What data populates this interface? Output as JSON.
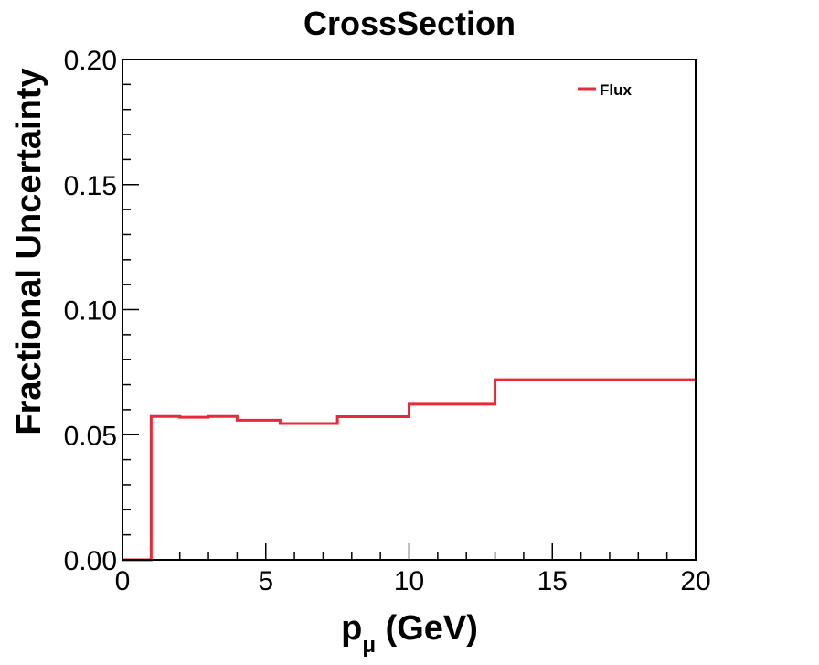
{
  "chart_data": {
    "type": "line",
    "title": "CrossSection",
    "xlabel": {
      "main": "p",
      "sub": "μ",
      "unit": " (GeV)"
    },
    "ylabel": "Fractional Uncertainty",
    "xlim": [
      0,
      20
    ],
    "ylim": [
      0.0,
      0.2
    ],
    "x_ticks": [
      "0",
      "5",
      "10",
      "15",
      "20"
    ],
    "y_ticks": [
      "0.00",
      "0.05",
      "0.10",
      "0.15",
      "0.20"
    ],
    "grid": false,
    "legend_position": "top-right",
    "series": [
      {
        "name": "Flux",
        "color": "#e8293a",
        "style": "step",
        "bins": [
          {
            "x_low": 0.0,
            "x_high": 1.0,
            "y": 0.0
          },
          {
            "x_low": 1.0,
            "x_high": 2.0,
            "y": 0.0573
          },
          {
            "x_low": 2.0,
            "x_high": 3.0,
            "y": 0.057
          },
          {
            "x_low": 3.0,
            "x_high": 4.0,
            "y": 0.0573
          },
          {
            "x_low": 4.0,
            "x_high": 5.5,
            "y": 0.0558
          },
          {
            "x_low": 5.5,
            "x_high": 7.5,
            "y": 0.0545
          },
          {
            "x_low": 7.5,
            "x_high": 10.0,
            "y": 0.0572
          },
          {
            "x_low": 10.0,
            "x_high": 13.0,
            "y": 0.0622
          },
          {
            "x_low": 13.0,
            "x_high": 20.0,
            "y": 0.072
          }
        ]
      }
    ]
  }
}
